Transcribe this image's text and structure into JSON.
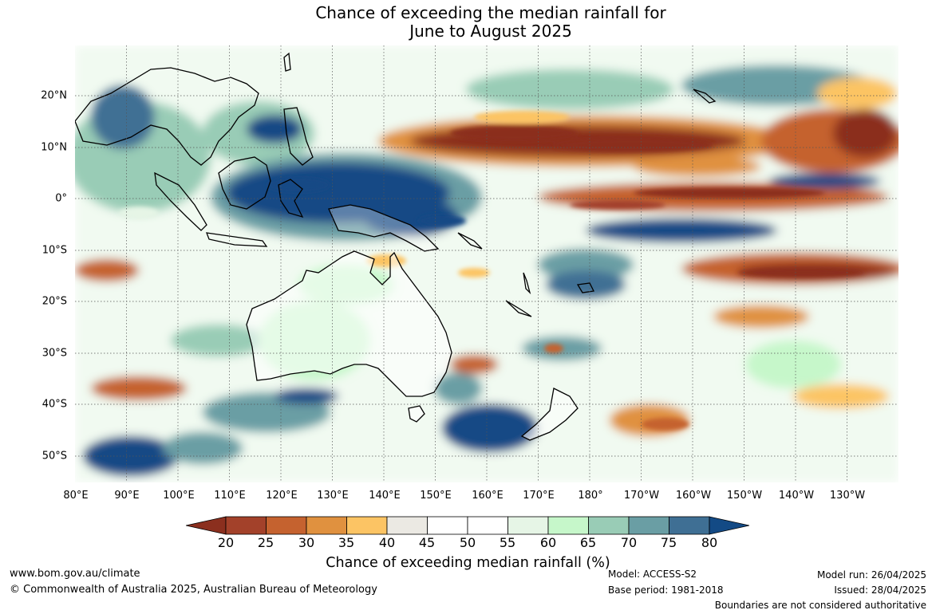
{
  "title": {
    "line1": "Chance of exceeding the median rainfall for",
    "line2": "June to August 2025"
  },
  "map": {
    "region": "Indo-Pacific, Australia and South-West Pacific",
    "lon_labels": [
      "80°E",
      "90°E",
      "100°E",
      "110°E",
      "120°E",
      "130°E",
      "140°E",
      "150°E",
      "160°E",
      "170°E",
      "180°",
      "170°W",
      "160°W",
      "150°W",
      "140°W",
      "130°W"
    ],
    "lat_labels": [
      "20°N",
      "10°N",
      "0°",
      "10°S",
      "20°S",
      "30°S",
      "40°S",
      "50°S"
    ],
    "colors": {
      "20-25": "#a3412a",
      "25-30": "#c5622f",
      "30-35": "#e0913f",
      "35-40": "#fcc464",
      "40-45": "#ebe9e3",
      "45-55": "#ffffff",
      "55-60": "#e6f5e6",
      "60-65": "#c6f7ca",
      "65-70": "#99ccb6",
      "70-75": "#6a9ea4",
      "75-80": "#3f6f94",
      "below-20": "#8b2f1e",
      "above-80": "#134a85"
    }
  },
  "colorbar": {
    "ticks": [
      "20",
      "25",
      "30",
      "35",
      "40",
      "45",
      "50",
      "55",
      "60",
      "65",
      "70",
      "75",
      "80"
    ],
    "label": "Chance of exceeding median rainfall (%)"
  },
  "footer": {
    "website": "www.bom.gov.au/climate",
    "copyright": "© Commonwealth of Australia 2025, Australian Bureau of Meteorology",
    "model": "Model: ACCESS-S2",
    "base_period": "Base period: 1981-2018",
    "model_run": "Model run: 26/04/2025",
    "issued": "Issued: 28/04/2025",
    "disclaimer": "Boundaries are not considered authoritative"
  }
}
